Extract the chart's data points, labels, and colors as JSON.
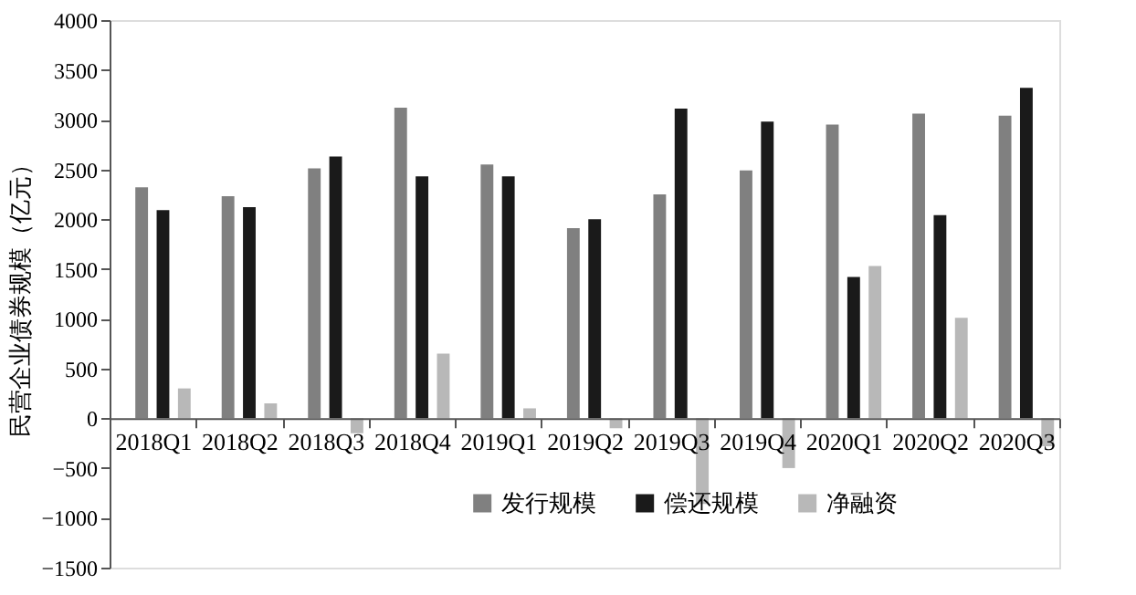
{
  "chart_data": {
    "type": "bar",
    "ylabel": "民营企业债券规模（亿元）",
    "categories": [
      "2018Q1",
      "2018Q2",
      "2018Q3",
      "2018Q4",
      "2019Q1",
      "2019Q2",
      "2019Q3",
      "2019Q4",
      "2020Q1",
      "2020Q2",
      "2020Q3"
    ],
    "series": [
      {
        "name": "发行规模",
        "color": "#808080",
        "values": [
          2320,
          2230,
          2510,
          3120,
          2550,
          1910,
          2250,
          2490,
          2950,
          3060,
          3040
        ]
      },
      {
        "name": "偿还规模",
        "color": "#1a1a1a",
        "values": [
          2090,
          2120,
          2630,
          2430,
          2430,
          2000,
          3110,
          2980,
          1420,
          2040,
          3320
        ]
      },
      {
        "name": "净融资",
        "color": "#b8b8b8",
        "values": [
          300,
          150,
          -150,
          650,
          100,
          -100,
          -860,
          -500,
          1530,
          1010,
          -280
        ]
      }
    ],
    "ylim": [
      -1500,
      4000
    ],
    "yticks": [
      -1500,
      -1000,
      -500,
      0,
      500,
      1000,
      1500,
      2000,
      2500,
      3000,
      3500,
      4000
    ],
    "grid": false,
    "legend": "bottom"
  }
}
